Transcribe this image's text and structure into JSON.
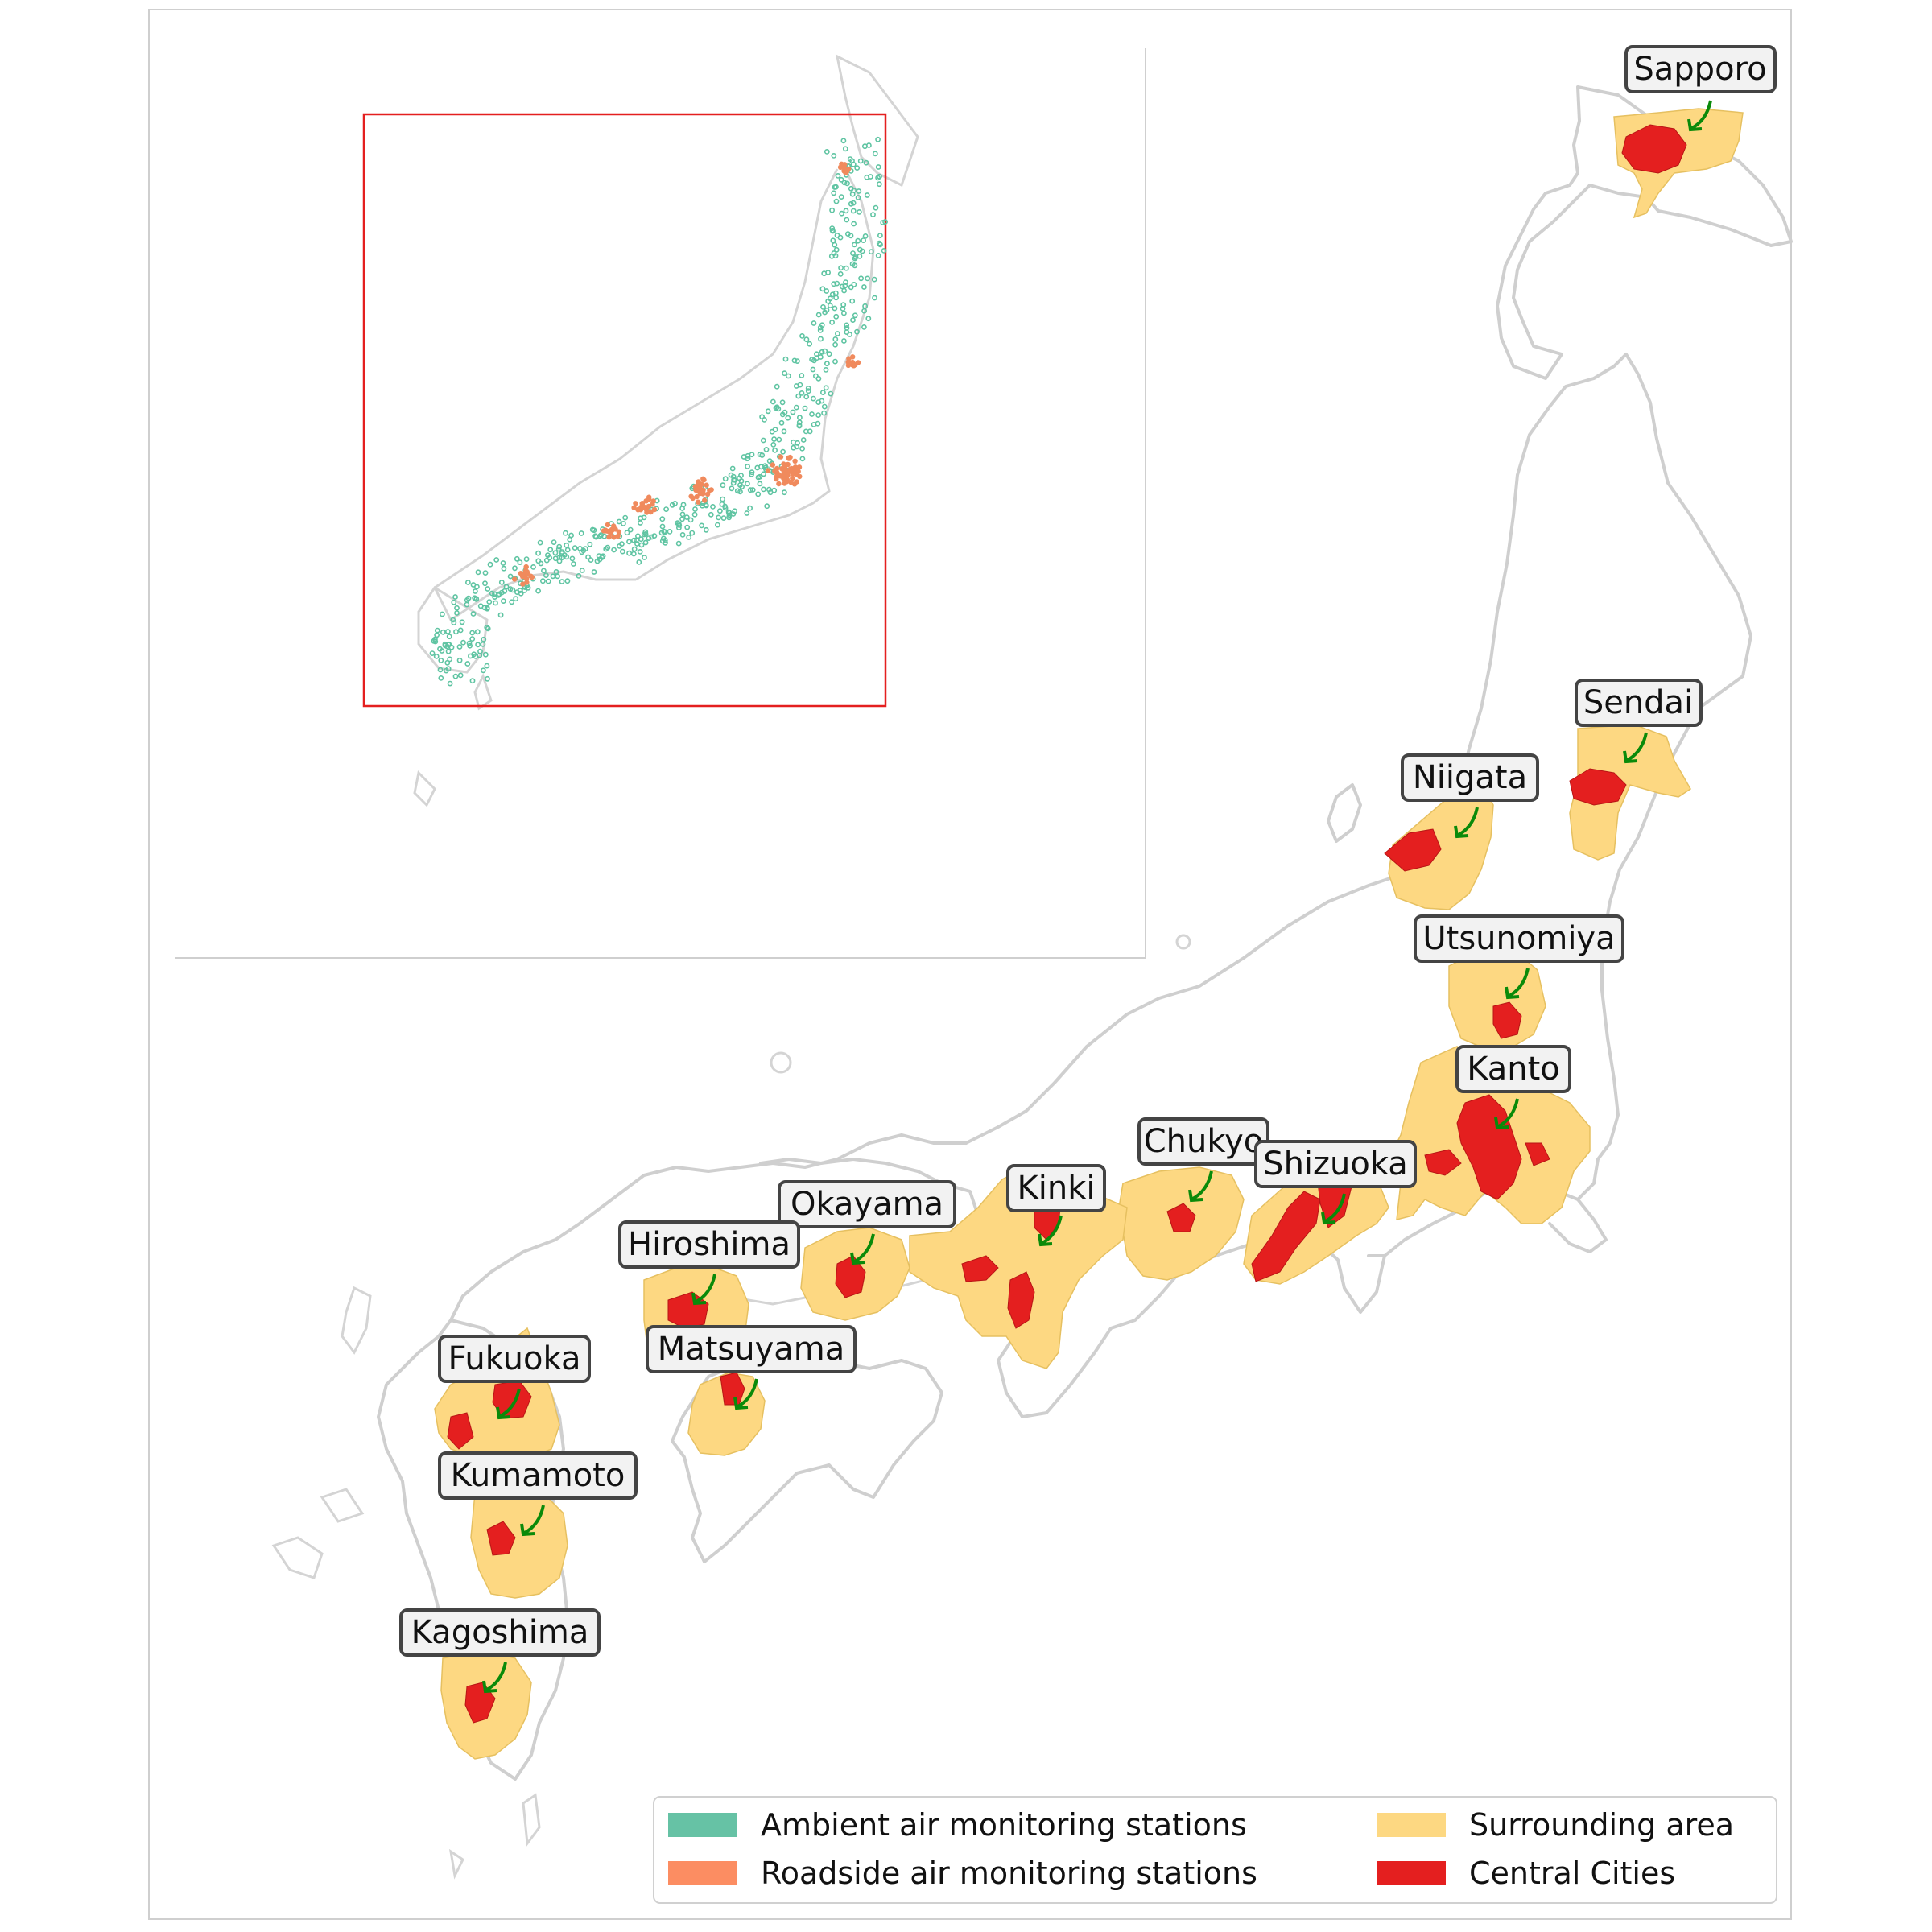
{
  "cities": [
    {
      "name": "Sapporo"
    },
    {
      "name": "Sendai"
    },
    {
      "name": "Niigata"
    },
    {
      "name": "Utsunomiya"
    },
    {
      "name": "Kanto"
    },
    {
      "name": "Chukyo"
    },
    {
      "name": "Shizuoka"
    },
    {
      "name": "Kinki"
    },
    {
      "name": "Okayama"
    },
    {
      "name": "Hiroshima"
    },
    {
      "name": "Matsuyama"
    },
    {
      "name": "Fukuoka"
    },
    {
      "name": "Kumamoto"
    },
    {
      "name": "Kagoshima"
    }
  ],
  "legend": [
    {
      "label": "Ambient air monitoring stations",
      "color": "#66c2a5"
    },
    {
      "label": "Roadside air monitoring stations",
      "color": "#fc8d62"
    },
    {
      "label": "Surrounding area",
      "color": "#fdd882"
    },
    {
      "label": "Central Cities",
      "color": "#e41f1f"
    }
  ],
  "colors": {
    "coastline": "#cfcfcf",
    "inset_extent_box": "#e41f1f",
    "arrow": "#0a8a0a"
  }
}
